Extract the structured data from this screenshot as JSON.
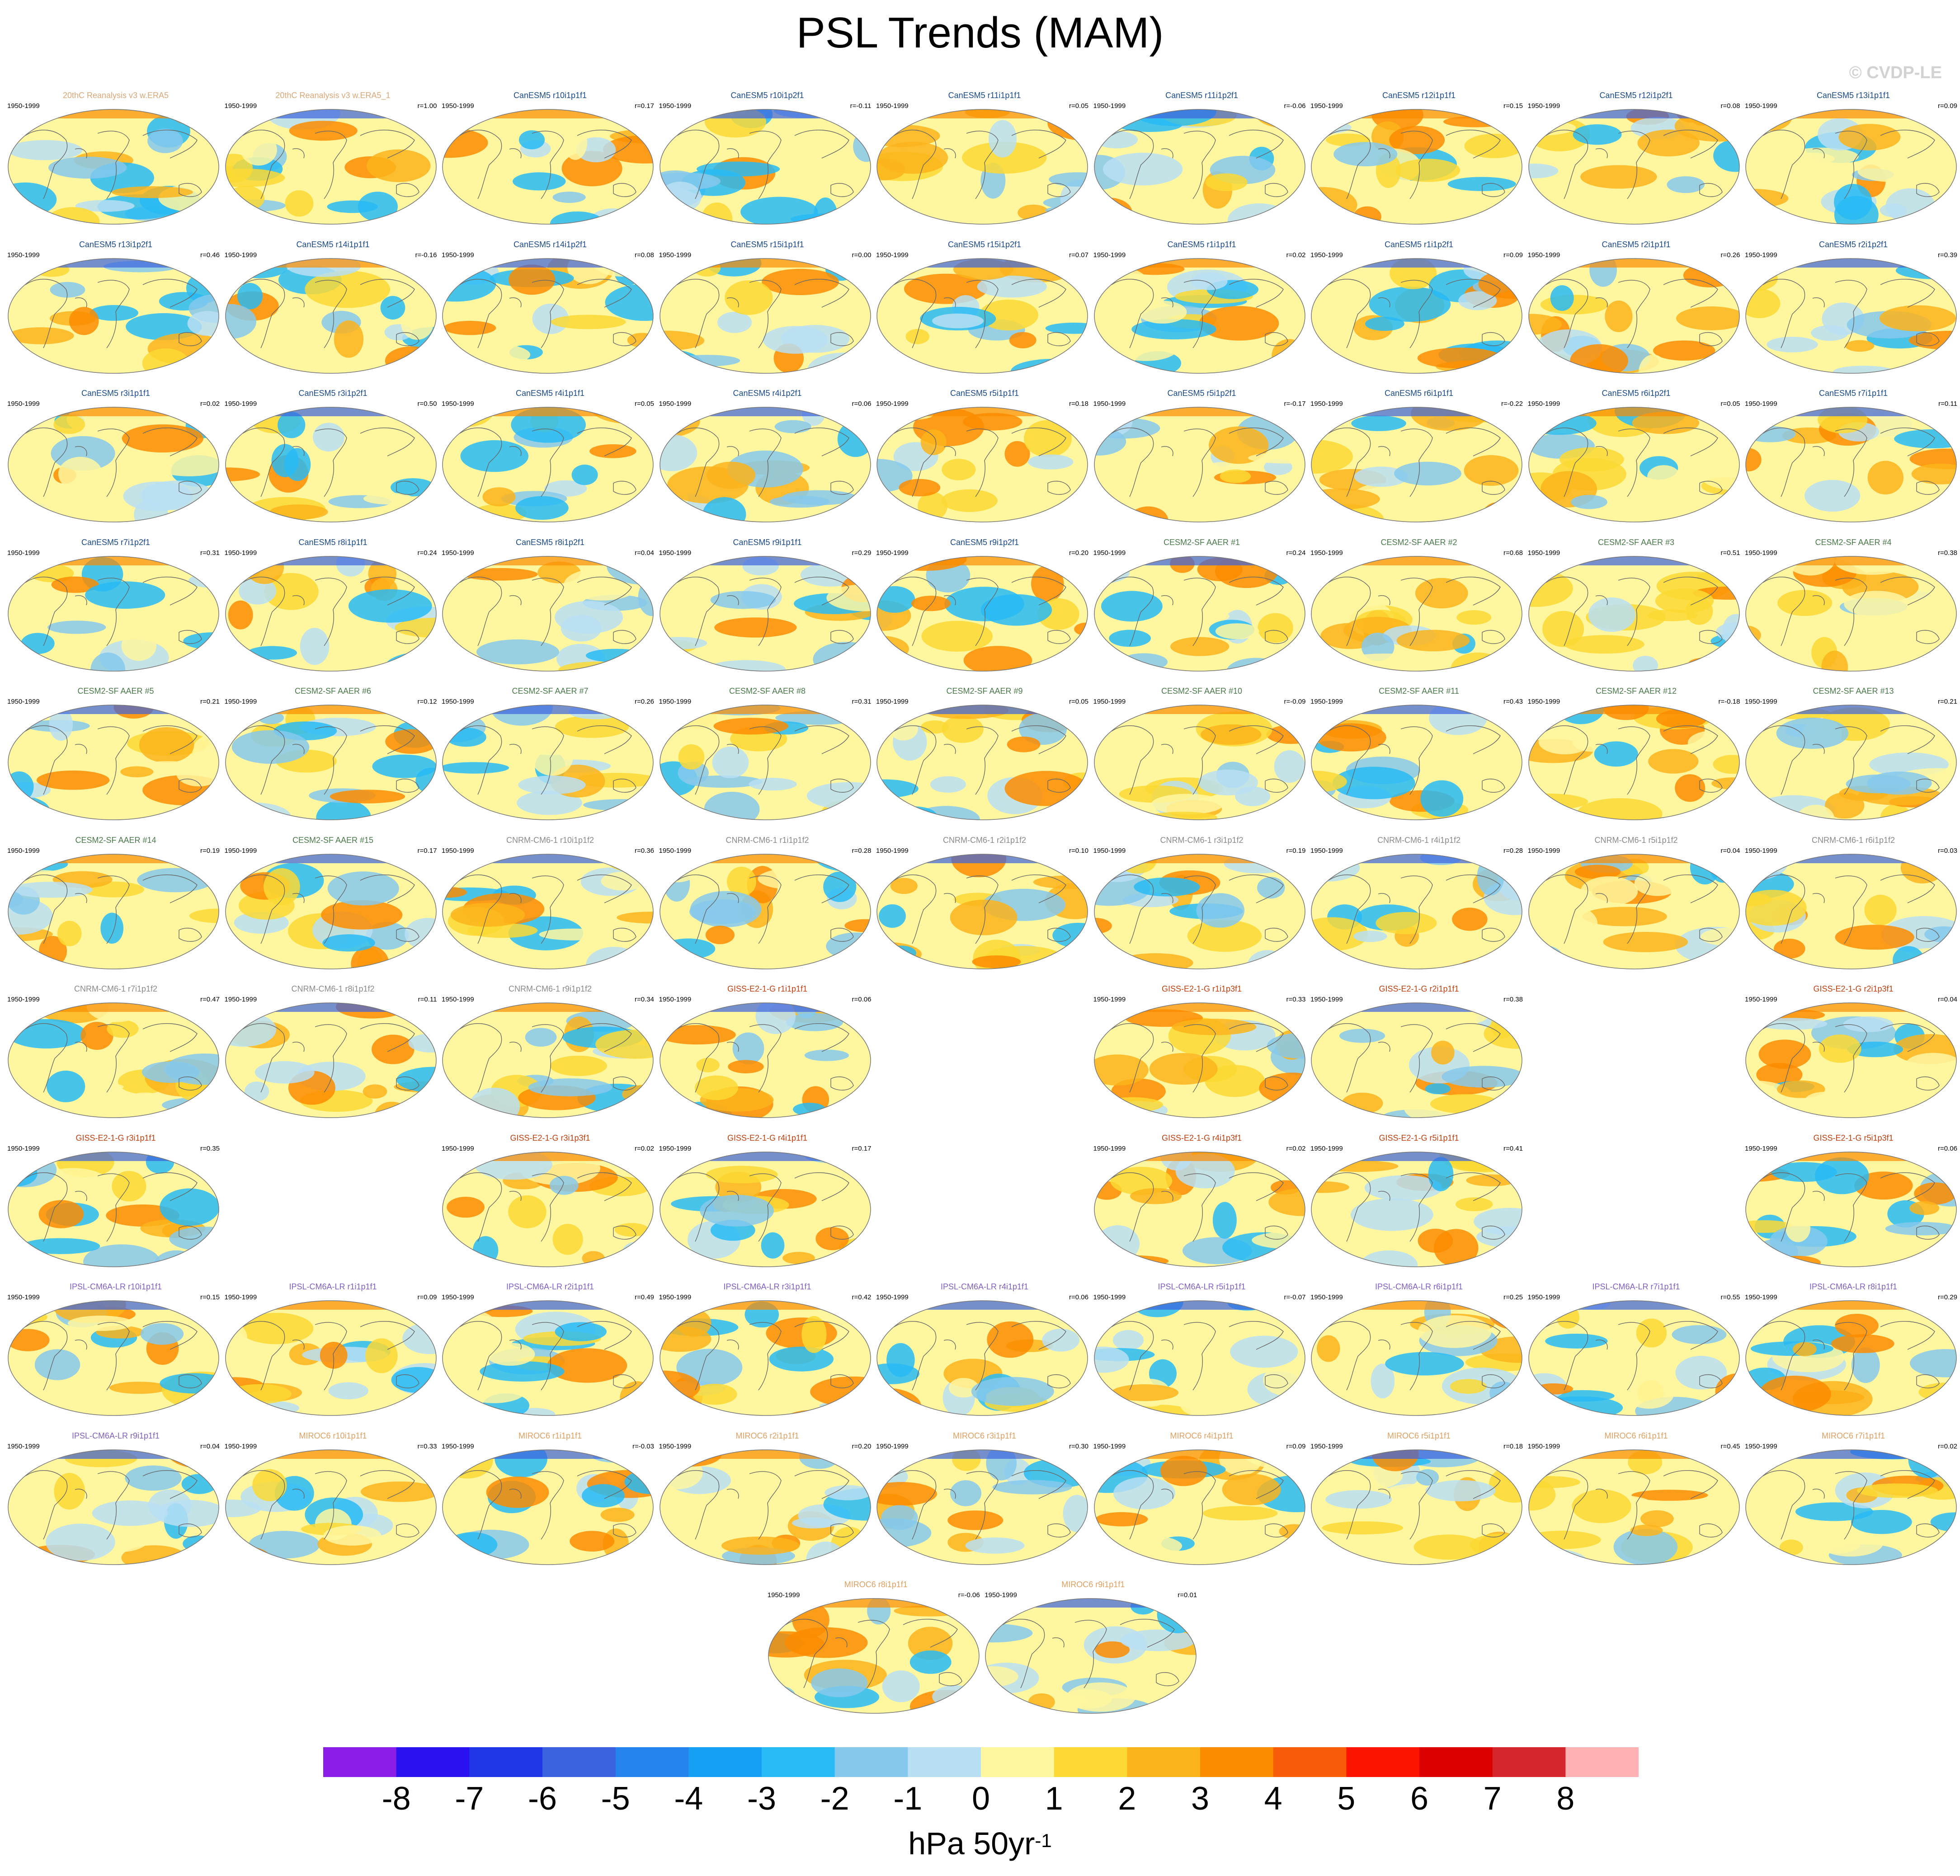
{
  "title": "PSL Trends (MAM)",
  "copyright": "© CVDP-LE",
  "period": "1950-1999",
  "model_colors": {
    "20thC": "#d9a878",
    "CanESM5": "#1a4a8a",
    "CESM2-SF": "#4a7a4a",
    "CNRM-CM6-1": "#8a8a8a",
    "GISS-E2-1-G": "#c04010",
    "IPSL-CM6A-LR": "#8060c0",
    "MIROC6": "#e0a060"
  },
  "panels": [
    {
      "name": "20thC Reanalysis v3 w.ERA5",
      "corr": "",
      "row": 0,
      "col": 0,
      "model": "20thC"
    },
    {
      "name": "20thC Reanalysis v3 w.ERA5_1",
      "corr": "r=1.00",
      "row": 0,
      "col": 1,
      "model": "20thC"
    },
    {
      "name": "CanESM5 r10i1p1f1",
      "corr": "r=0.17",
      "row": 0,
      "col": 2,
      "model": "CanESM5"
    },
    {
      "name": "CanESM5 r10i1p2f1",
      "corr": "r=-0.11",
      "row": 0,
      "col": 3,
      "model": "CanESM5"
    },
    {
      "name": "CanESM5 r11i1p1f1",
      "corr": "r=0.05",
      "row": 0,
      "col": 4,
      "model": "CanESM5"
    },
    {
      "name": "CanESM5 r11i1p2f1",
      "corr": "r=-0.06",
      "row": 0,
      "col": 5,
      "model": "CanESM5"
    },
    {
      "name": "CanESM5 r12i1p1f1",
      "corr": "r=0.15",
      "row": 0,
      "col": 6,
      "model": "CanESM5"
    },
    {
      "name": "CanESM5 r12i1p2f1",
      "corr": "r=0.08",
      "row": 0,
      "col": 7,
      "model": "CanESM5"
    },
    {
      "name": "CanESM5 r13i1p1f1",
      "corr": "r=0.09",
      "row": 0,
      "col": 8,
      "model": "CanESM5"
    },
    {
      "name": "CanESM5 r13i1p2f1",
      "corr": "r=0.46",
      "row": 1,
      "col": 0,
      "model": "CanESM5"
    },
    {
      "name": "CanESM5 r14i1p1f1",
      "corr": "r=-0.16",
      "row": 1,
      "col": 1,
      "model": "CanESM5"
    },
    {
      "name": "CanESM5 r14i1p2f1",
      "corr": "r=0.08",
      "row": 1,
      "col": 2,
      "model": "CanESM5"
    },
    {
      "name": "CanESM5 r15i1p1f1",
      "corr": "r=0.00",
      "row": 1,
      "col": 3,
      "model": "CanESM5"
    },
    {
      "name": "CanESM5 r15i1p2f1",
      "corr": "r=0.07",
      "row": 1,
      "col": 4,
      "model": "CanESM5"
    },
    {
      "name": "CanESM5 r1i1p1f1",
      "corr": "r=0.02",
      "row": 1,
      "col": 5,
      "model": "CanESM5"
    },
    {
      "name": "CanESM5 r1i1p2f1",
      "corr": "r=0.09",
      "row": 1,
      "col": 6,
      "model": "CanESM5"
    },
    {
      "name": "CanESM5 r2i1p1f1",
      "corr": "r=0.26",
      "row": 1,
      "col": 7,
      "model": "CanESM5"
    },
    {
      "name": "CanESM5 r2i1p2f1",
      "corr": "r=0.39",
      "row": 1,
      "col": 8,
      "model": "CanESM5"
    },
    {
      "name": "CanESM5 r3i1p1f1",
      "corr": "r=0.02",
      "row": 2,
      "col": 0,
      "model": "CanESM5"
    },
    {
      "name": "CanESM5 r3i1p2f1",
      "corr": "r=0.50",
      "row": 2,
      "col": 1,
      "model": "CanESM5"
    },
    {
      "name": "CanESM5 r4i1p1f1",
      "corr": "r=0.05",
      "row": 2,
      "col": 2,
      "model": "CanESM5"
    },
    {
      "name": "CanESM5 r4i1p2f1",
      "corr": "r=0.06",
      "row": 2,
      "col": 3,
      "model": "CanESM5"
    },
    {
      "name": "CanESM5 r5i1p1f1",
      "corr": "r=0.18",
      "row": 2,
      "col": 4,
      "model": "CanESM5"
    },
    {
      "name": "CanESM5 r5i1p2f1",
      "corr": "r=-0.17",
      "row": 2,
      "col": 5,
      "model": "CanESM5"
    },
    {
      "name": "CanESM5 r6i1p1f1",
      "corr": "r=-0.22",
      "row": 2,
      "col": 6,
      "model": "CanESM5"
    },
    {
      "name": "CanESM5 r6i1p2f1",
      "corr": "r=0.05",
      "row": 2,
      "col": 7,
      "model": "CanESM5"
    },
    {
      "name": "CanESM5 r7i1p1f1",
      "corr": "r=0.11",
      "row": 2,
      "col": 8,
      "model": "CanESM5"
    },
    {
      "name": "CanESM5 r7i1p2f1",
      "corr": "r=0.31",
      "row": 3,
      "col": 0,
      "model": "CanESM5"
    },
    {
      "name": "CanESM5 r8i1p1f1",
      "corr": "r=0.24",
      "row": 3,
      "col": 1,
      "model": "CanESM5"
    },
    {
      "name": "CanESM5 r8i1p2f1",
      "corr": "r=0.04",
      "row": 3,
      "col": 2,
      "model": "CanESM5"
    },
    {
      "name": "CanESM5 r9i1p1f1",
      "corr": "r=0.29",
      "row": 3,
      "col": 3,
      "model": "CanESM5"
    },
    {
      "name": "CanESM5 r9i1p2f1",
      "corr": "r=0.20",
      "row": 3,
      "col": 4,
      "model": "CanESM5"
    },
    {
      "name": "CESM2-SF AAER #1",
      "corr": "r=0.24",
      "row": 3,
      "col": 5,
      "model": "CESM2-SF"
    },
    {
      "name": "CESM2-SF AAER #2",
      "corr": "r=0.68",
      "row": 3,
      "col": 6,
      "model": "CESM2-SF"
    },
    {
      "name": "CESM2-SF AAER #3",
      "corr": "r=0.51",
      "row": 3,
      "col": 7,
      "model": "CESM2-SF"
    },
    {
      "name": "CESM2-SF AAER #4",
      "corr": "r=0.38",
      "row": 3,
      "col": 8,
      "model": "CESM2-SF"
    },
    {
      "name": "CESM2-SF AAER #5",
      "corr": "r=0.21",
      "row": 4,
      "col": 0,
      "model": "CESM2-SF"
    },
    {
      "name": "CESM2-SF AAER #6",
      "corr": "r=0.12",
      "row": 4,
      "col": 1,
      "model": "CESM2-SF"
    },
    {
      "name": "CESM2-SF AAER #7",
      "corr": "r=0.26",
      "row": 4,
      "col": 2,
      "model": "CESM2-SF"
    },
    {
      "name": "CESM2-SF AAER #8",
      "corr": "r=0.31",
      "row": 4,
      "col": 3,
      "model": "CESM2-SF"
    },
    {
      "name": "CESM2-SF AAER #9",
      "corr": "r=0.05",
      "row": 4,
      "col": 4,
      "model": "CESM2-SF"
    },
    {
      "name": "CESM2-SF AAER #10",
      "corr": "r=-0.09",
      "row": 4,
      "col": 5,
      "model": "CESM2-SF"
    },
    {
      "name": "CESM2-SF AAER #11",
      "corr": "r=0.43",
      "row": 4,
      "col": 6,
      "model": "CESM2-SF"
    },
    {
      "name": "CESM2-SF AAER #12",
      "corr": "r=-0.18",
      "row": 4,
      "col": 7,
      "model": "CESM2-SF"
    },
    {
      "name": "CESM2-SF AAER #13",
      "corr": "r=0.21",
      "row": 4,
      "col": 8,
      "model": "CESM2-SF"
    },
    {
      "name": "CESM2-SF AAER #14",
      "corr": "r=0.19",
      "row": 5,
      "col": 0,
      "model": "CESM2-SF"
    },
    {
      "name": "CESM2-SF AAER #15",
      "corr": "r=0.17",
      "row": 5,
      "col": 1,
      "model": "CESM2-SF"
    },
    {
      "name": "CNRM-CM6-1 r10i1p1f2",
      "corr": "r=0.36",
      "row": 5,
      "col": 2,
      "model": "CNRM-CM6-1"
    },
    {
      "name": "CNRM-CM6-1 r1i1p1f2",
      "corr": "r=0.28",
      "row": 5,
      "col": 3,
      "model": "CNRM-CM6-1"
    },
    {
      "name": "CNRM-CM6-1 r2i1p1f2",
      "corr": "r=0.10",
      "row": 5,
      "col": 4,
      "model": "CNRM-CM6-1"
    },
    {
      "name": "CNRM-CM6-1 r3i1p1f2",
      "corr": "r=0.19",
      "row": 5,
      "col": 5,
      "model": "CNRM-CM6-1"
    },
    {
      "name": "CNRM-CM6-1 r4i1p1f2",
      "corr": "r=0.28",
      "row": 5,
      "col": 6,
      "model": "CNRM-CM6-1"
    },
    {
      "name": "CNRM-CM6-1 r5i1p1f2",
      "corr": "r=0.04",
      "row": 5,
      "col": 7,
      "model": "CNRM-CM6-1"
    },
    {
      "name": "CNRM-CM6-1 r6i1p1f2",
      "corr": "r=0.03",
      "row": 5,
      "col": 8,
      "model": "CNRM-CM6-1"
    },
    {
      "name": "CNRM-CM6-1 r7i1p1f2",
      "corr": "r=0.47",
      "row": 6,
      "col": 0,
      "model": "CNRM-CM6-1"
    },
    {
      "name": "CNRM-CM6-1 r8i1p1f2",
      "corr": "r=0.11",
      "row": 6,
      "col": 1,
      "model": "CNRM-CM6-1"
    },
    {
      "name": "CNRM-CM6-1 r9i1p1f2",
      "corr": "r=0.34",
      "row": 6,
      "col": 2,
      "model": "CNRM-CM6-1"
    },
    {
      "name": "GISS-E2-1-G r1i1p1f1",
      "corr": "r=0.06",
      "row": 6,
      "col": 3,
      "model": "GISS-E2-1-G"
    },
    {
      "name": "GISS-E2-1-G r1i1p3f1",
      "corr": "r=0.33",
      "row": 6,
      "col": 5,
      "model": "GISS-E2-1-G"
    },
    {
      "name": "GISS-E2-1-G r2i1p1f1",
      "corr": "r=0.38",
      "row": 6,
      "col": 6,
      "model": "GISS-E2-1-G"
    },
    {
      "name": "GISS-E2-1-G r2i1p3f1",
      "corr": "r=0.04",
      "row": 6,
      "col": 8,
      "model": "GISS-E2-1-G"
    },
    {
      "name": "GISS-E2-1-G r3i1p1f1",
      "corr": "r=0.35",
      "row": 7,
      "col": 0,
      "model": "GISS-E2-1-G"
    },
    {
      "name": "GISS-E2-1-G r3i1p3f1",
      "corr": "r=0.02",
      "row": 7,
      "col": 2,
      "model": "GISS-E2-1-G"
    },
    {
      "name": "GISS-E2-1-G r4i1p1f1",
      "corr": "r=0.17",
      "row": 7,
      "col": 3,
      "model": "GISS-E2-1-G"
    },
    {
      "name": "GISS-E2-1-G r4i1p3f1",
      "corr": "r=0.02",
      "row": 7,
      "col": 5,
      "model": "GISS-E2-1-G"
    },
    {
      "name": "GISS-E2-1-G r5i1p1f1",
      "corr": "r=0.41",
      "row": 7,
      "col": 6,
      "model": "GISS-E2-1-G"
    },
    {
      "name": "GISS-E2-1-G r5i1p3f1",
      "corr": "r=0.06",
      "row": 7,
      "col": 8,
      "model": "GISS-E2-1-G"
    },
    {
      "name": "IPSL-CM6A-LR r10i1p1f1",
      "corr": "r=0.15",
      "row": 8,
      "col": 0,
      "model": "IPSL-CM6A-LR"
    },
    {
      "name": "IPSL-CM6A-LR r1i1p1f1",
      "corr": "r=0.09",
      "row": 8,
      "col": 1,
      "model": "IPSL-CM6A-LR"
    },
    {
      "name": "IPSL-CM6A-LR r2i1p1f1",
      "corr": "r=0.49",
      "row": 8,
      "col": 2,
      "model": "IPSL-CM6A-LR"
    },
    {
      "name": "IPSL-CM6A-LR r3i1p1f1",
      "corr": "r=0.42",
      "row": 8,
      "col": 3,
      "model": "IPSL-CM6A-LR"
    },
    {
      "name": "IPSL-CM6A-LR r4i1p1f1",
      "corr": "r=0.06",
      "row": 8,
      "col": 4,
      "model": "IPSL-CM6A-LR"
    },
    {
      "name": "IPSL-CM6A-LR r5i1p1f1",
      "corr": "r=-0.07",
      "row": 8,
      "col": 5,
      "model": "IPSL-CM6A-LR"
    },
    {
      "name": "IPSL-CM6A-LR r6i1p1f1",
      "corr": "r=0.25",
      "row": 8,
      "col": 6,
      "model": "IPSL-CM6A-LR"
    },
    {
      "name": "IPSL-CM6A-LR r7i1p1f1",
      "corr": "r=0.55",
      "row": 8,
      "col": 7,
      "model": "IPSL-CM6A-LR"
    },
    {
      "name": "IPSL-CM6A-LR r8i1p1f1",
      "corr": "r=0.29",
      "row": 8,
      "col": 8,
      "model": "IPSL-CM6A-LR"
    },
    {
      "name": "IPSL-CM6A-LR r9i1p1f1",
      "corr": "r=0.04",
      "row": 9,
      "col": 0,
      "model": "IPSL-CM6A-LR"
    },
    {
      "name": "MIROC6 r10i1p1f1",
      "corr": "r=0.33",
      "row": 9,
      "col": 1,
      "model": "MIROC6"
    },
    {
      "name": "MIROC6 r1i1p1f1",
      "corr": "r=-0.03",
      "row": 9,
      "col": 2,
      "model": "MIROC6"
    },
    {
      "name": "MIROC6 r2i1p1f1",
      "corr": "r=0.20",
      "row": 9,
      "col": 3,
      "model": "MIROC6"
    },
    {
      "name": "MIROC6 r3i1p1f1",
      "corr": "r=0.30",
      "row": 9,
      "col": 4,
      "model": "MIROC6"
    },
    {
      "name": "MIROC6 r4i1p1f1",
      "corr": "r=0.09",
      "row": 9,
      "col": 5,
      "model": "MIROC6"
    },
    {
      "name": "MIROC6 r5i1p1f1",
      "corr": "r=0.18",
      "row": 9,
      "col": 6,
      "model": "MIROC6"
    },
    {
      "name": "MIROC6 r6i1p1f1",
      "corr": "r=0.45",
      "row": 9,
      "col": 7,
      "model": "MIROC6"
    },
    {
      "name": "MIROC6 r7i1p1f1",
      "corr": "r=0.02",
      "row": 9,
      "col": 8,
      "model": "MIROC6"
    },
    {
      "name": "MIROC6 r8i1p1f1",
      "corr": "r=-0.06",
      "row": 10,
      "col": 3.5,
      "model": "MIROC6"
    },
    {
      "name": "MIROC6 r9i1p1f1",
      "corr": "r=0.01",
      "row": 10,
      "col": 4.5,
      "model": "MIROC6"
    }
  ],
  "colorbar": {
    "colors": [
      "#8a1ee6",
      "#2a12f0",
      "#1f36e6",
      "#3a62de",
      "#2583ee",
      "#16a0f5",
      "#28bbf5",
      "#86c9ec",
      "#b8dff3",
      "#fff7a0",
      "#fcd934",
      "#fbb41b",
      "#fb8c00",
      "#f95d0a",
      "#fc1300",
      "#dd0000",
      "#d4262c",
      "#ffb1b3"
    ],
    "labels": [
      "-8",
      "-7",
      "-6",
      "-5",
      "-4",
      "-3",
      "-2",
      "-1",
      "0",
      "1",
      "2",
      "3",
      "4",
      "5",
      "6",
      "7",
      "8"
    ]
  },
  "units": {
    "base": "hPa 50yr",
    "exponent": "-1"
  }
}
